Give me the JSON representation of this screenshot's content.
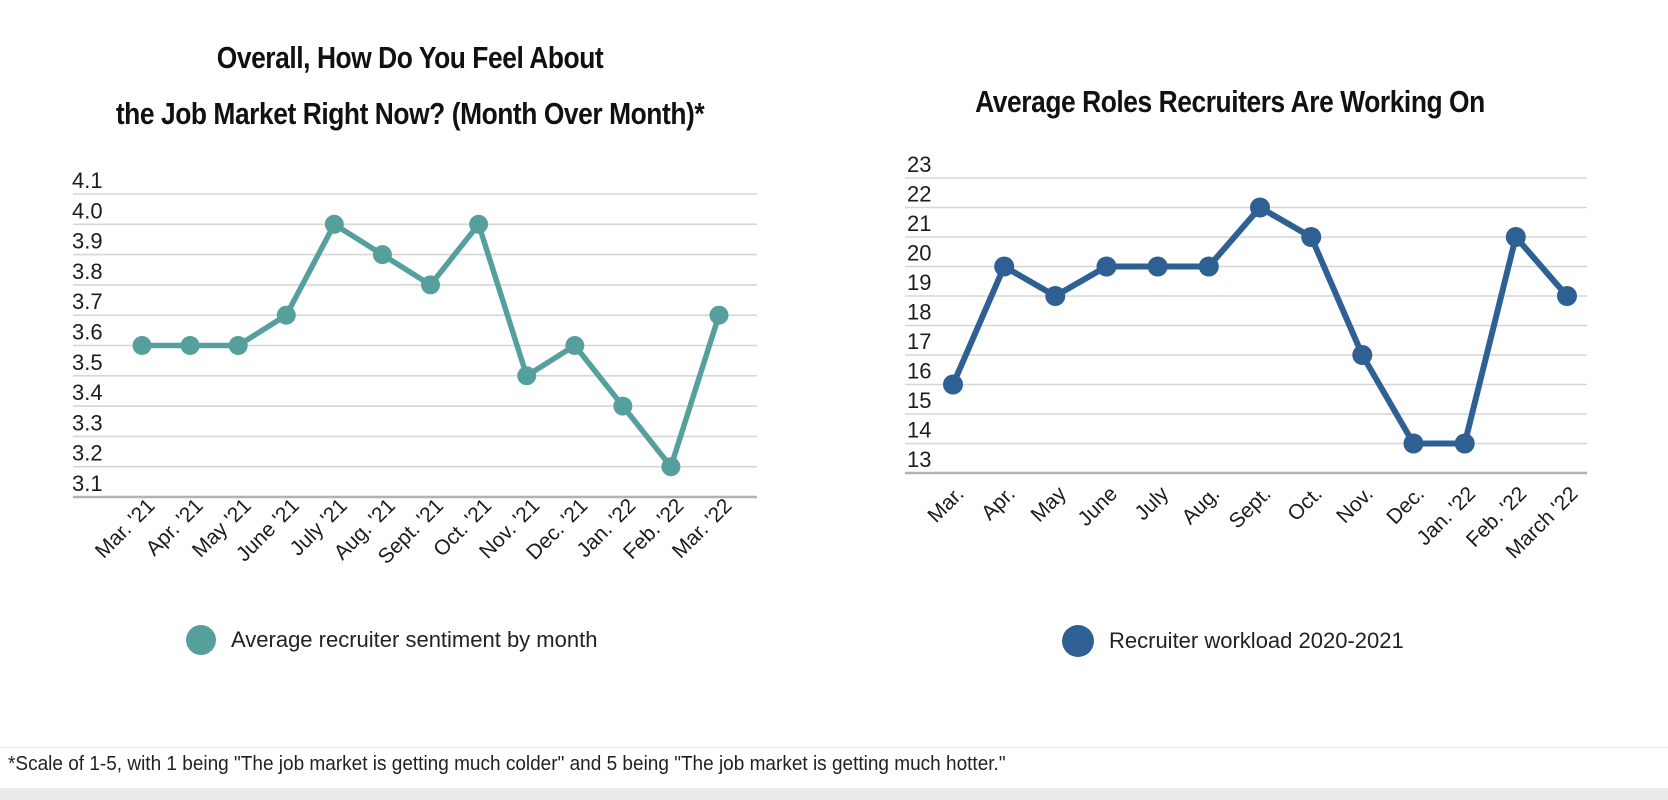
{
  "page": {
    "footnote": "*Scale of 1-5, with 1 being \"The job market is getting much colder\" and 5 being \"The job market is getting much hotter.\""
  },
  "colors": {
    "sentiment_series": "#55a09d",
    "workload_series": "#2e6094",
    "gridline": "#d6d6d6",
    "axis_line": "#b3b3b3",
    "text": "#1c1c1c"
  },
  "chart_data": [
    {
      "type": "line",
      "title": "Overall, How Do You Feel About the Job Market Right Now? (Month Over Month)*",
      "title_lines": [
        "Overall, How Do You Feel About",
        "the Job Market Right Now? (Month Over Month)*"
      ],
      "categories": [
        "Mar. '21",
        "Apr. '21",
        "May '21",
        "June '21",
        "July '21",
        "Aug. '21",
        "Sept. '21",
        "Oct. '21",
        "Nov. '21",
        "Dec. '21",
        "Jan. '22",
        "Feb. '22",
        "Mar. '22"
      ],
      "series": [
        {
          "name": "Average recruiter sentiment by month",
          "values": [
            3.6,
            3.6,
            3.6,
            3.7,
            4.0,
            3.9,
            3.8,
            4.0,
            3.5,
            3.6,
            3.4,
            3.2,
            3.7
          ]
        }
      ],
      "yticks": [
        "4.1",
        "4.0",
        "3.9",
        "3.8",
        "3.7",
        "3.6",
        "3.5",
        "3.4",
        "3.3",
        "3.2",
        "3.1"
      ],
      "ylim": [
        3.1,
        4.1
      ],
      "ytick_step": 0.1,
      "xlabel": "",
      "ylabel": "",
      "grid": true,
      "color": "#55a09d",
      "legend": "Average recruiter sentiment by month",
      "legend_position": "bottom"
    },
    {
      "type": "line",
      "title": "Average Roles Recruiters Are Working On",
      "title_lines": [
        "Average Roles Recruiters Are Working On"
      ],
      "categories": [
        "Mar.",
        "Apr.",
        "May",
        "June",
        "July",
        "Aug.",
        "Sept.",
        "Oct.",
        "Nov.",
        "Dec.",
        "Jan. '22",
        "Feb. '22",
        "March '22"
      ],
      "series": [
        {
          "name": "Recruiter workload 2020-2021",
          "values": [
            16,
            20,
            19,
            20,
            20,
            20,
            22,
            21,
            17,
            14,
            14,
            21,
            19
          ]
        }
      ],
      "yticks": [
        "23",
        "22",
        "21",
        "20",
        "19",
        "18",
        "17",
        "16",
        "15",
        "14",
        "13"
      ],
      "ylim": [
        13,
        23
      ],
      "ytick_step": 1,
      "xlabel": "",
      "ylabel": "",
      "grid": true,
      "color": "#2e6094",
      "legend": "Recruiter workload 2020-2021",
      "legend_position": "bottom"
    }
  ]
}
